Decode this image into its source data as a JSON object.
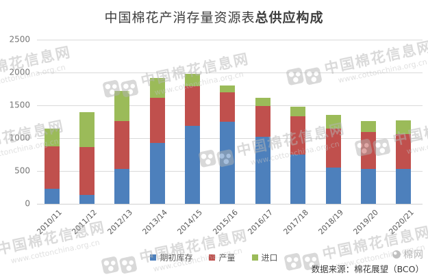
{
  "title": {
    "regular": "中国棉花产消存量资源表",
    "bold": "总供应构成"
  },
  "chart_data": {
    "type": "bar",
    "stacked": true,
    "title": "中国棉花产消存量资源表总供应构成",
    "categories": [
      "2010/11",
      "2011/12",
      "2012/13",
      "2013/14",
      "2014/15",
      "2015/16",
      "2016/17",
      "2017/18",
      "2018/19",
      "2019/20",
      "2020/21"
    ],
    "series": [
      {
        "name": "期初库存",
        "color": "#4D80BC",
        "values": [
          230,
          135,
          530,
          930,
          1185,
          1245,
          1020,
          755,
          555,
          530,
          530
        ]
      },
      {
        "name": "产量",
        "color": "#C0504D",
        "values": [
          645,
          730,
          735,
          685,
          610,
          455,
          475,
          575,
          590,
          560,
          535
        ]
      },
      {
        "name": "进口",
        "color": "#9BBB59",
        "values": [
          270,
          535,
          450,
          300,
          180,
          105,
          120,
          150,
          205,
          175,
          210
        ]
      }
    ],
    "totals": [
      1145,
      1400,
      1715,
      1915,
      1975,
      1805,
      1615,
      1480,
      1350,
      1265,
      1275
    ],
    "ylim": [
      0,
      2500
    ],
    "yticks": [
      0,
      500,
      1000,
      1500,
      2000,
      2500
    ],
    "grid": true,
    "legend_position": "bottom"
  },
  "watermark": {
    "name": "中国棉花信息网",
    "url": "www.cottonchina.org.cn"
  },
  "footer": {
    "brand": "棉网",
    "source": "数据来源：棉花展望（BCO）"
  }
}
